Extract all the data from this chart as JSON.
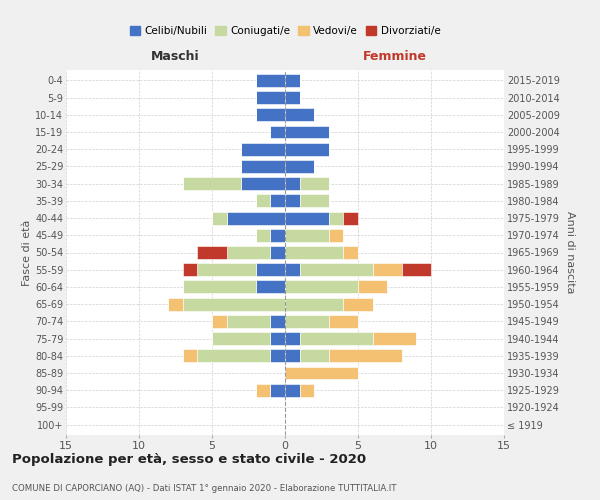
{
  "age_groups": [
    "100+",
    "95-99",
    "90-94",
    "85-89",
    "80-84",
    "75-79",
    "70-74",
    "65-69",
    "60-64",
    "55-59",
    "50-54",
    "45-49",
    "40-44",
    "35-39",
    "30-34",
    "25-29",
    "20-24",
    "15-19",
    "10-14",
    "5-9",
    "0-4"
  ],
  "birth_years": [
    "≤ 1919",
    "1920-1924",
    "1925-1929",
    "1930-1934",
    "1935-1939",
    "1940-1944",
    "1945-1949",
    "1950-1954",
    "1955-1959",
    "1960-1964",
    "1965-1969",
    "1970-1974",
    "1975-1979",
    "1980-1984",
    "1985-1989",
    "1990-1994",
    "1995-1999",
    "2000-2004",
    "2005-2009",
    "2010-2014",
    "2015-2019"
  ],
  "males": {
    "celibe": [
      0,
      0,
      1,
      0,
      1,
      1,
      1,
      0,
      2,
      2,
      1,
      1,
      4,
      1,
      3,
      3,
      3,
      1,
      2,
      2,
      2
    ],
    "coniugato": [
      0,
      0,
      0,
      0,
      5,
      4,
      3,
      7,
      5,
      4,
      3,
      1,
      1,
      1,
      4,
      0,
      0,
      0,
      0,
      0,
      0
    ],
    "vedovo": [
      0,
      0,
      1,
      0,
      1,
      0,
      1,
      1,
      0,
      0,
      0,
      0,
      0,
      0,
      0,
      0,
      0,
      0,
      0,
      0,
      0
    ],
    "divorziato": [
      0,
      0,
      0,
      0,
      0,
      0,
      0,
      0,
      0,
      1,
      2,
      0,
      0,
      0,
      0,
      0,
      0,
      0,
      0,
      0,
      0
    ]
  },
  "females": {
    "celibe": [
      0,
      0,
      1,
      0,
      1,
      1,
      0,
      0,
      0,
      1,
      0,
      0,
      3,
      1,
      1,
      2,
      3,
      3,
      2,
      1,
      1
    ],
    "coniugato": [
      0,
      0,
      0,
      0,
      2,
      5,
      3,
      4,
      5,
      5,
      4,
      3,
      1,
      2,
      2,
      0,
      0,
      0,
      0,
      0,
      0
    ],
    "vedovo": [
      0,
      0,
      1,
      5,
      5,
      3,
      2,
      2,
      2,
      2,
      1,
      1,
      0,
      0,
      0,
      0,
      0,
      0,
      0,
      0,
      0
    ],
    "divorziato": [
      0,
      0,
      0,
      0,
      0,
      0,
      0,
      0,
      0,
      2,
      0,
      0,
      1,
      0,
      0,
      0,
      0,
      0,
      0,
      0,
      0
    ]
  },
  "colors": {
    "celibe": "#4472C4",
    "coniugato": "#c6d9a0",
    "vedovo": "#f4c072",
    "divorziato": "#c0392b"
  },
  "xlim": 15,
  "title": "Popolazione per età, sesso e stato civile - 2020",
  "subtitle": "COMUNE DI CAPORCIANO (AQ) - Dati ISTAT 1° gennaio 2020 - Elaborazione TUTTITALIA.IT",
  "ylabel_left": "Fasce di età",
  "ylabel_right": "Anni di nascita",
  "xlabel_left": "Maschi",
  "xlabel_right": "Femmine",
  "bg_color": "#f0f0f0",
  "plot_bg": "#ffffff"
}
